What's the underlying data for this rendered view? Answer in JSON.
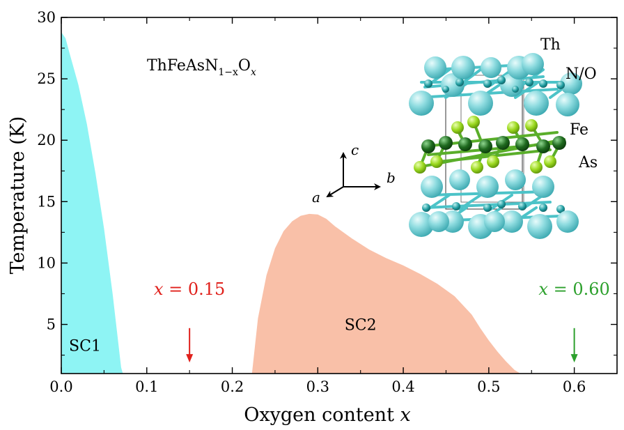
{
  "chart_data": {
    "type": "area",
    "xlabel": "Oxygen content x",
    "ylabel": "Temperature (K)",
    "xlim": [
      0.0,
      0.65
    ],
    "ylim": [
      1.0,
      30.0
    ],
    "xticks": [
      0.0,
      0.1,
      0.2,
      0.3,
      0.4,
      0.5,
      0.6
    ],
    "xtick_labels": [
      "0.0",
      "0.1",
      "0.2",
      "0.3",
      "0.4",
      "0.5",
      "0.6"
    ],
    "yticks": [
      5,
      10,
      15,
      20,
      25,
      30
    ],
    "ytick_labels": [
      "5",
      "10",
      "15",
      "20",
      "25",
      "30"
    ],
    "formula": {
      "main": "ThFeAsN",
      "sub": "1−x",
      "main2": "O",
      "sub2": "x"
    },
    "series": [
      {
        "name": "SC1",
        "color": "#8ef4f4",
        "x": [
          0.0,
          0.005,
          0.01,
          0.02,
          0.03,
          0.04,
          0.05,
          0.06,
          0.065,
          0.07,
          0.072
        ],
        "y": [
          28.8,
          28.3,
          27.0,
          24.5,
          21.3,
          17.3,
          12.8,
          7.5,
          4.5,
          1.5,
          1.0
        ]
      },
      {
        "name": "SC2",
        "color": "#f9c0a8",
        "x": [
          0.223,
          0.23,
          0.24,
          0.25,
          0.26,
          0.27,
          0.28,
          0.29,
          0.3,
          0.31,
          0.32,
          0.34,
          0.36,
          0.38,
          0.4,
          0.42,
          0.44,
          0.46,
          0.48,
          0.49,
          0.5,
          0.51,
          0.52,
          0.53,
          0.537
        ],
        "y": [
          1.0,
          5.5,
          9.0,
          11.2,
          12.6,
          13.4,
          13.85,
          14.0,
          13.95,
          13.6,
          13.0,
          12.0,
          11.1,
          10.4,
          9.8,
          9.1,
          8.3,
          7.3,
          5.8,
          4.7,
          3.7,
          2.8,
          2.0,
          1.3,
          1.0
        ]
      }
    ],
    "annotations": [
      {
        "text": "x = 0.15",
        "x": 0.15,
        "label_y": 7.4,
        "arrow_from": 4.7,
        "arrow_to": 1.9,
        "color": "#e0201b"
      },
      {
        "text": "x = 0.60",
        "x": 0.6,
        "label_y": 7.4,
        "arrow_from": 4.7,
        "arrow_to": 1.9,
        "color": "#2ca02c"
      }
    ]
  },
  "inset": {
    "atom_labels": [
      "Th",
      "N/O",
      "Fe",
      "As"
    ],
    "axes": [
      "a",
      "b",
      "c"
    ],
    "colors": {
      "th": "#7fd4d8",
      "n_o": "#1f9ca0",
      "fe": "#1f6a1f",
      "as": "#9ad81e"
    }
  }
}
